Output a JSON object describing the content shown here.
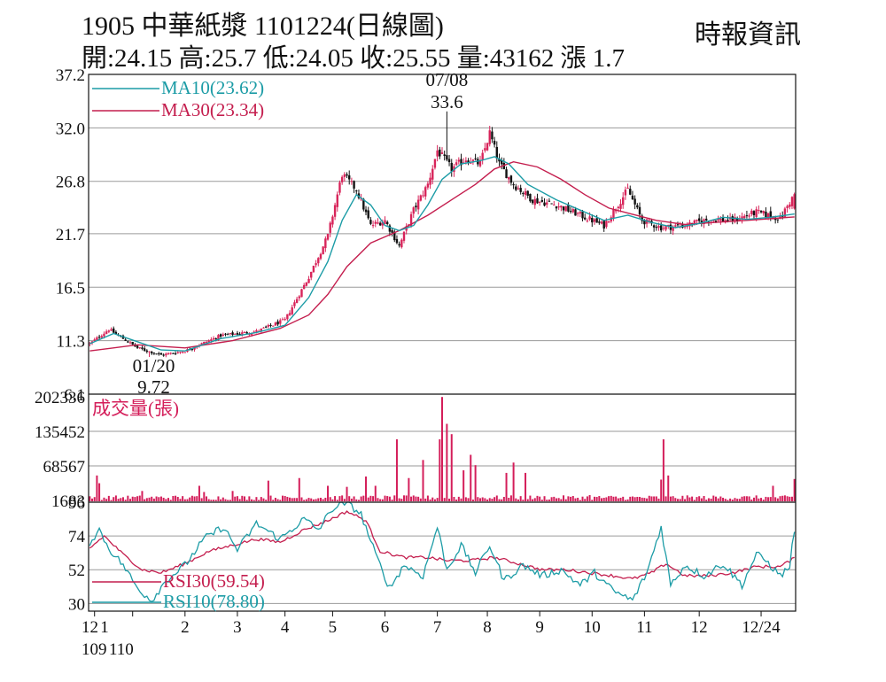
{
  "header": {
    "title": "1905 中華紙漿 1101224(日線圖)",
    "source": "時報資訊",
    "quote": "開:24.15 高:25.7 低:24.05 收:25.55 量:43162 漲 1.7"
  },
  "colors": {
    "up": "#d8245a",
    "down": "#111111",
    "ma10": "#1c9ca6",
    "ma30": "#c41e4e",
    "volume": "#d41e5a",
    "rsi30": "#c41e4e",
    "rsi10": "#1c9ca6",
    "grid": "#9a9a9a"
  },
  "chart_data": [
    {
      "type": "line",
      "name": "price",
      "ylim": [
        6.1,
        37.2
      ],
      "yticks": [
        "37.2",
        "32.0",
        "26.8",
        "21.7",
        "16.5",
        "11.3",
        "6.1"
      ],
      "legend": [
        {
          "label": "MA10(23.62)",
          "value": 23.62,
          "color": "#1c9ca6"
        },
        {
          "label": "MA30(23.34)",
          "value": 23.34,
          "color": "#c41e4e"
        }
      ],
      "annotations": [
        {
          "date": "07/08",
          "value": "33.6",
          "y": 33.6
        },
        {
          "date": "01/20",
          "value": "9.72",
          "y": 9.72
        }
      ],
      "x_months": [
        "12",
        "1",
        "2",
        "3",
        "4",
        "5",
        "6",
        "7",
        "8",
        "9",
        "10",
        "11",
        "12",
        "12/24"
      ],
      "x_years": [
        "109",
        "110"
      ],
      "close_anchors": [
        [
          0,
          11.0
        ],
        [
          8,
          12.4
        ],
        [
          20,
          10.6
        ],
        [
          30,
          9.9
        ],
        [
          40,
          10.3
        ],
        [
          55,
          11.8
        ],
        [
          70,
          12.2
        ],
        [
          82,
          13.3
        ],
        [
          92,
          17.5
        ],
        [
          100,
          21.5
        ],
        [
          106,
          27.5
        ],
        [
          112,
          26.0
        ],
        [
          118,
          22.5
        ],
        [
          124,
          23.0
        ],
        [
          130,
          20.5
        ],
        [
          136,
          24.0
        ],
        [
          142,
          26.5
        ],
        [
          146,
          29.8
        ],
        [
          152,
          28.0
        ],
        [
          158,
          29.0
        ],
        [
          164,
          28.5
        ],
        [
          168,
          31.5
        ],
        [
          172,
          28.5
        ],
        [
          178,
          26.5
        ],
        [
          186,
          25.0
        ],
        [
          196,
          24.5
        ],
        [
          206,
          23.5
        ],
        [
          216,
          22.5
        ],
        [
          226,
          26.0
        ],
        [
          232,
          23.0
        ],
        [
          240,
          22.3
        ],
        [
          250,
          22.5
        ],
        [
          260,
          23.1
        ],
        [
          270,
          23.0
        ],
        [
          280,
          23.8
        ],
        [
          290,
          23.2
        ],
        [
          296,
          25.55
        ]
      ],
      "ma10_anchors": [
        [
          0,
          11.0
        ],
        [
          10,
          12.0
        ],
        [
          20,
          11.2
        ],
        [
          30,
          10.4
        ],
        [
          40,
          10.3
        ],
        [
          55,
          11.5
        ],
        [
          70,
          12.1
        ],
        [
          82,
          12.8
        ],
        [
          92,
          15.5
        ],
        [
          100,
          19.0
        ],
        [
          106,
          23.0
        ],
        [
          112,
          25.5
        ],
        [
          118,
          24.5
        ],
        [
          124,
          22.5
        ],
        [
          130,
          22.0
        ],
        [
          136,
          22.5
        ],
        [
          142,
          24.5
        ],
        [
          148,
          27.0
        ],
        [
          156,
          28.5
        ],
        [
          164,
          28.8
        ],
        [
          170,
          29.2
        ],
        [
          176,
          28.5
        ],
        [
          184,
          26.5
        ],
        [
          196,
          25.0
        ],
        [
          206,
          24.0
        ],
        [
          216,
          23.0
        ],
        [
          226,
          23.5
        ],
        [
          236,
          22.8
        ],
        [
          246,
          22.3
        ],
        [
          256,
          22.7
        ],
        [
          266,
          23.3
        ],
        [
          276,
          23.1
        ],
        [
          286,
          23.3
        ],
        [
          296,
          23.62
        ]
      ],
      "ma30_anchors": [
        [
          0,
          10.3
        ],
        [
          20,
          10.9
        ],
        [
          40,
          10.6
        ],
        [
          60,
          11.3
        ],
        [
          80,
          12.5
        ],
        [
          92,
          13.8
        ],
        [
          100,
          15.8
        ],
        [
          108,
          18.5
        ],
        [
          118,
          20.8
        ],
        [
          130,
          22.0
        ],
        [
          142,
          23.5
        ],
        [
          152,
          25.0
        ],
        [
          162,
          26.5
        ],
        [
          170,
          28.0
        ],
        [
          178,
          28.7
        ],
        [
          188,
          28.2
        ],
        [
          198,
          27.0
        ],
        [
          208,
          25.5
        ],
        [
          218,
          24.2
        ],
        [
          228,
          23.6
        ],
        [
          238,
          23.0
        ],
        [
          250,
          22.6
        ],
        [
          262,
          22.8
        ],
        [
          276,
          23.0
        ],
        [
          296,
          23.34
        ]
      ]
    },
    {
      "type": "bar",
      "name": "volume",
      "label": "成交量(張)",
      "yticks": [
        "202336",
        "135452",
        "68567",
        "1683"
      ],
      "ylim": [
        1683,
        202336
      ],
      "spikes": [
        [
          3,
          50000
        ],
        [
          4,
          35000
        ],
        [
          22,
          20000
        ],
        [
          46,
          30000
        ],
        [
          48,
          18000
        ],
        [
          60,
          20000
        ],
        [
          75,
          40000
        ],
        [
          88,
          45000
        ],
        [
          100,
          30000
        ],
        [
          108,
          28000
        ],
        [
          116,
          48000
        ],
        [
          120,
          30000
        ],
        [
          129,
          120000
        ],
        [
          134,
          45000
        ],
        [
          140,
          80000
        ],
        [
          147,
          120000
        ],
        [
          148,
          202000
        ],
        [
          150,
          150000
        ],
        [
          152,
          130000
        ],
        [
          157,
          60000
        ],
        [
          160,
          90000
        ],
        [
          162,
          70000
        ],
        [
          175,
          55000
        ],
        [
          178,
          75000
        ],
        [
          183,
          55000
        ],
        [
          210,
          12000
        ],
        [
          240,
          42000
        ],
        [
          241,
          120000
        ],
        [
          243,
          50000
        ],
        [
          260,
          6000
        ],
        [
          285,
          8000
        ],
        [
          287,
          30000
        ],
        [
          296,
          43162
        ]
      ]
    },
    {
      "type": "line",
      "name": "rsi",
      "yticks": [
        "96",
        "74",
        "52",
        "30"
      ],
      "ylim": [
        25,
        96
      ],
      "legend": [
        {
          "label": "RSI30(59.54)",
          "value": 59.54,
          "color": "#c41e4e"
        },
        {
          "label": "RSI10(78.80)",
          "value": 78.8,
          "color": "#1c9ca6"
        }
      ],
      "rsi10_anchors": [
        [
          0,
          70
        ],
        [
          4,
          78
        ],
        [
          8,
          66
        ],
        [
          14,
          55
        ],
        [
          20,
          40
        ],
        [
          26,
          32
        ],
        [
          32,
          45
        ],
        [
          40,
          55
        ],
        [
          48,
          72
        ],
        [
          56,
          80
        ],
        [
          62,
          65
        ],
        [
          70,
          82
        ],
        [
          80,
          72
        ],
        [
          90,
          85
        ],
        [
          96,
          78
        ],
        [
          102,
          92
        ],
        [
          108,
          96
        ],
        [
          114,
          88
        ],
        [
          120,
          62
        ],
        [
          126,
          40
        ],
        [
          132,
          55
        ],
        [
          140,
          48
        ],
        [
          146,
          80
        ],
        [
          150,
          52
        ],
        [
          156,
          68
        ],
        [
          162,
          50
        ],
        [
          168,
          68
        ],
        [
          174,
          45
        ],
        [
          182,
          55
        ],
        [
          190,
          48
        ],
        [
          198,
          52
        ],
        [
          206,
          42
        ],
        [
          212,
          50
        ],
        [
          220,
          38
        ],
        [
          228,
          32
        ],
        [
          234,
          50
        ],
        [
          240,
          80
        ],
        [
          244,
          42
        ],
        [
          250,
          55
        ],
        [
          258,
          48
        ],
        [
          266,
          56
        ],
        [
          274,
          42
        ],
        [
          280,
          62
        ],
        [
          284,
          58
        ],
        [
          290,
          48
        ],
        [
          294,
          54
        ],
        [
          296,
          78.8
        ]
      ],
      "rsi30_anchors": [
        [
          0,
          66
        ],
        [
          6,
          74
        ],
        [
          14,
          62
        ],
        [
          22,
          52
        ],
        [
          30,
          50
        ],
        [
          40,
          56
        ],
        [
          50,
          64
        ],
        [
          60,
          68
        ],
        [
          70,
          72
        ],
        [
          80,
          70
        ],
        [
          90,
          78
        ],
        [
          100,
          84
        ],
        [
          108,
          90
        ],
        [
          116,
          84
        ],
        [
          122,
          64
        ],
        [
          132,
          60
        ],
        [
          142,
          60
        ],
        [
          150,
          58
        ],
        [
          160,
          58
        ],
        [
          170,
          60
        ],
        [
          180,
          56
        ],
        [
          190,
          52
        ],
        [
          200,
          52
        ],
        [
          210,
          50
        ],
        [
          220,
          48
        ],
        [
          228,
          46
        ],
        [
          236,
          50
        ],
        [
          242,
          56
        ],
        [
          250,
          48
        ],
        [
          260,
          48
        ],
        [
          270,
          50
        ],
        [
          280,
          54
        ],
        [
          290,
          54
        ],
        [
          296,
          59.54
        ]
      ]
    }
  ]
}
